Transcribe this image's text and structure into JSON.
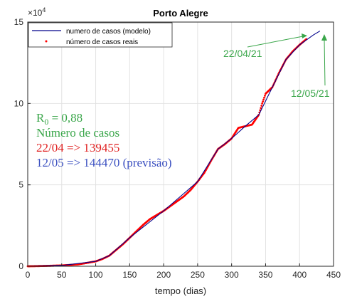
{
  "chart_data": {
    "type": "line",
    "title": "Porto Alegre",
    "xlabel": "tempo (dias)",
    "ylabel": "",
    "y_exponent_label": "×10",
    "y_exponent_power": "4",
    "xlim": [
      0,
      450
    ],
    "ylim": [
      0,
      15
    ],
    "x_ticks": [
      0,
      50,
      100,
      150,
      200,
      250,
      300,
      350,
      400,
      450
    ],
    "y_ticks": [
      0,
      5,
      10,
      15
    ],
    "grid": true,
    "legend_location": "top-left",
    "series": [
      {
        "name": "numero de casos (modelo)",
        "style": "line",
        "color": "#00008b",
        "x": [
          0,
          50,
          100,
          120,
          150,
          200,
          250,
          280,
          300,
          320,
          340,
          360,
          380,
          400,
          410,
          420,
          430
        ],
        "y": [
          0,
          0.05,
          0.3,
          0.65,
          1.75,
          3.4,
          5.2,
          7.2,
          7.85,
          8.6,
          9.3,
          11.0,
          12.7,
          13.6,
          13.9,
          14.2,
          14.45
        ]
      },
      {
        "name": "número de casos reais",
        "style": "points",
        "color": "#ff0000",
        "x": [
          0,
          25,
          50,
          75,
          100,
          110,
          120,
          130,
          140,
          150,
          160,
          170,
          180,
          190,
          200,
          210,
          220,
          230,
          240,
          250,
          260,
          270,
          280,
          290,
          300,
          310,
          320,
          330,
          340,
          345,
          350,
          355,
          360,
          370,
          380,
          390,
          400,
          410
        ],
        "y": [
          0,
          0.02,
          0.05,
          0.12,
          0.3,
          0.45,
          0.65,
          1.0,
          1.35,
          1.75,
          2.15,
          2.55,
          2.9,
          3.15,
          3.4,
          3.7,
          4.0,
          4.3,
          4.7,
          5.2,
          5.75,
          6.5,
          7.2,
          7.5,
          7.85,
          8.5,
          8.6,
          8.7,
          9.3,
          10.0,
          10.6,
          10.8,
          11.0,
          11.9,
          12.7,
          13.2,
          13.6,
          13.95
        ]
      }
    ],
    "annotations": {
      "r0_symbol": "R",
      "r0_subscript": "0",
      "r0_value": " = 0,88",
      "cases_heading": "Número de casos",
      "real_line": "22/04 => 139455",
      "forecast_line": "12/05 => 144470 (previsão)",
      "arrow_label_1": "22/04/21",
      "arrow_label_2": "12/05/21"
    },
    "colors": {
      "annotation_green": "#3aa64a",
      "annotation_red": "#e02020",
      "annotation_blue": "#3a4fc0"
    }
  }
}
